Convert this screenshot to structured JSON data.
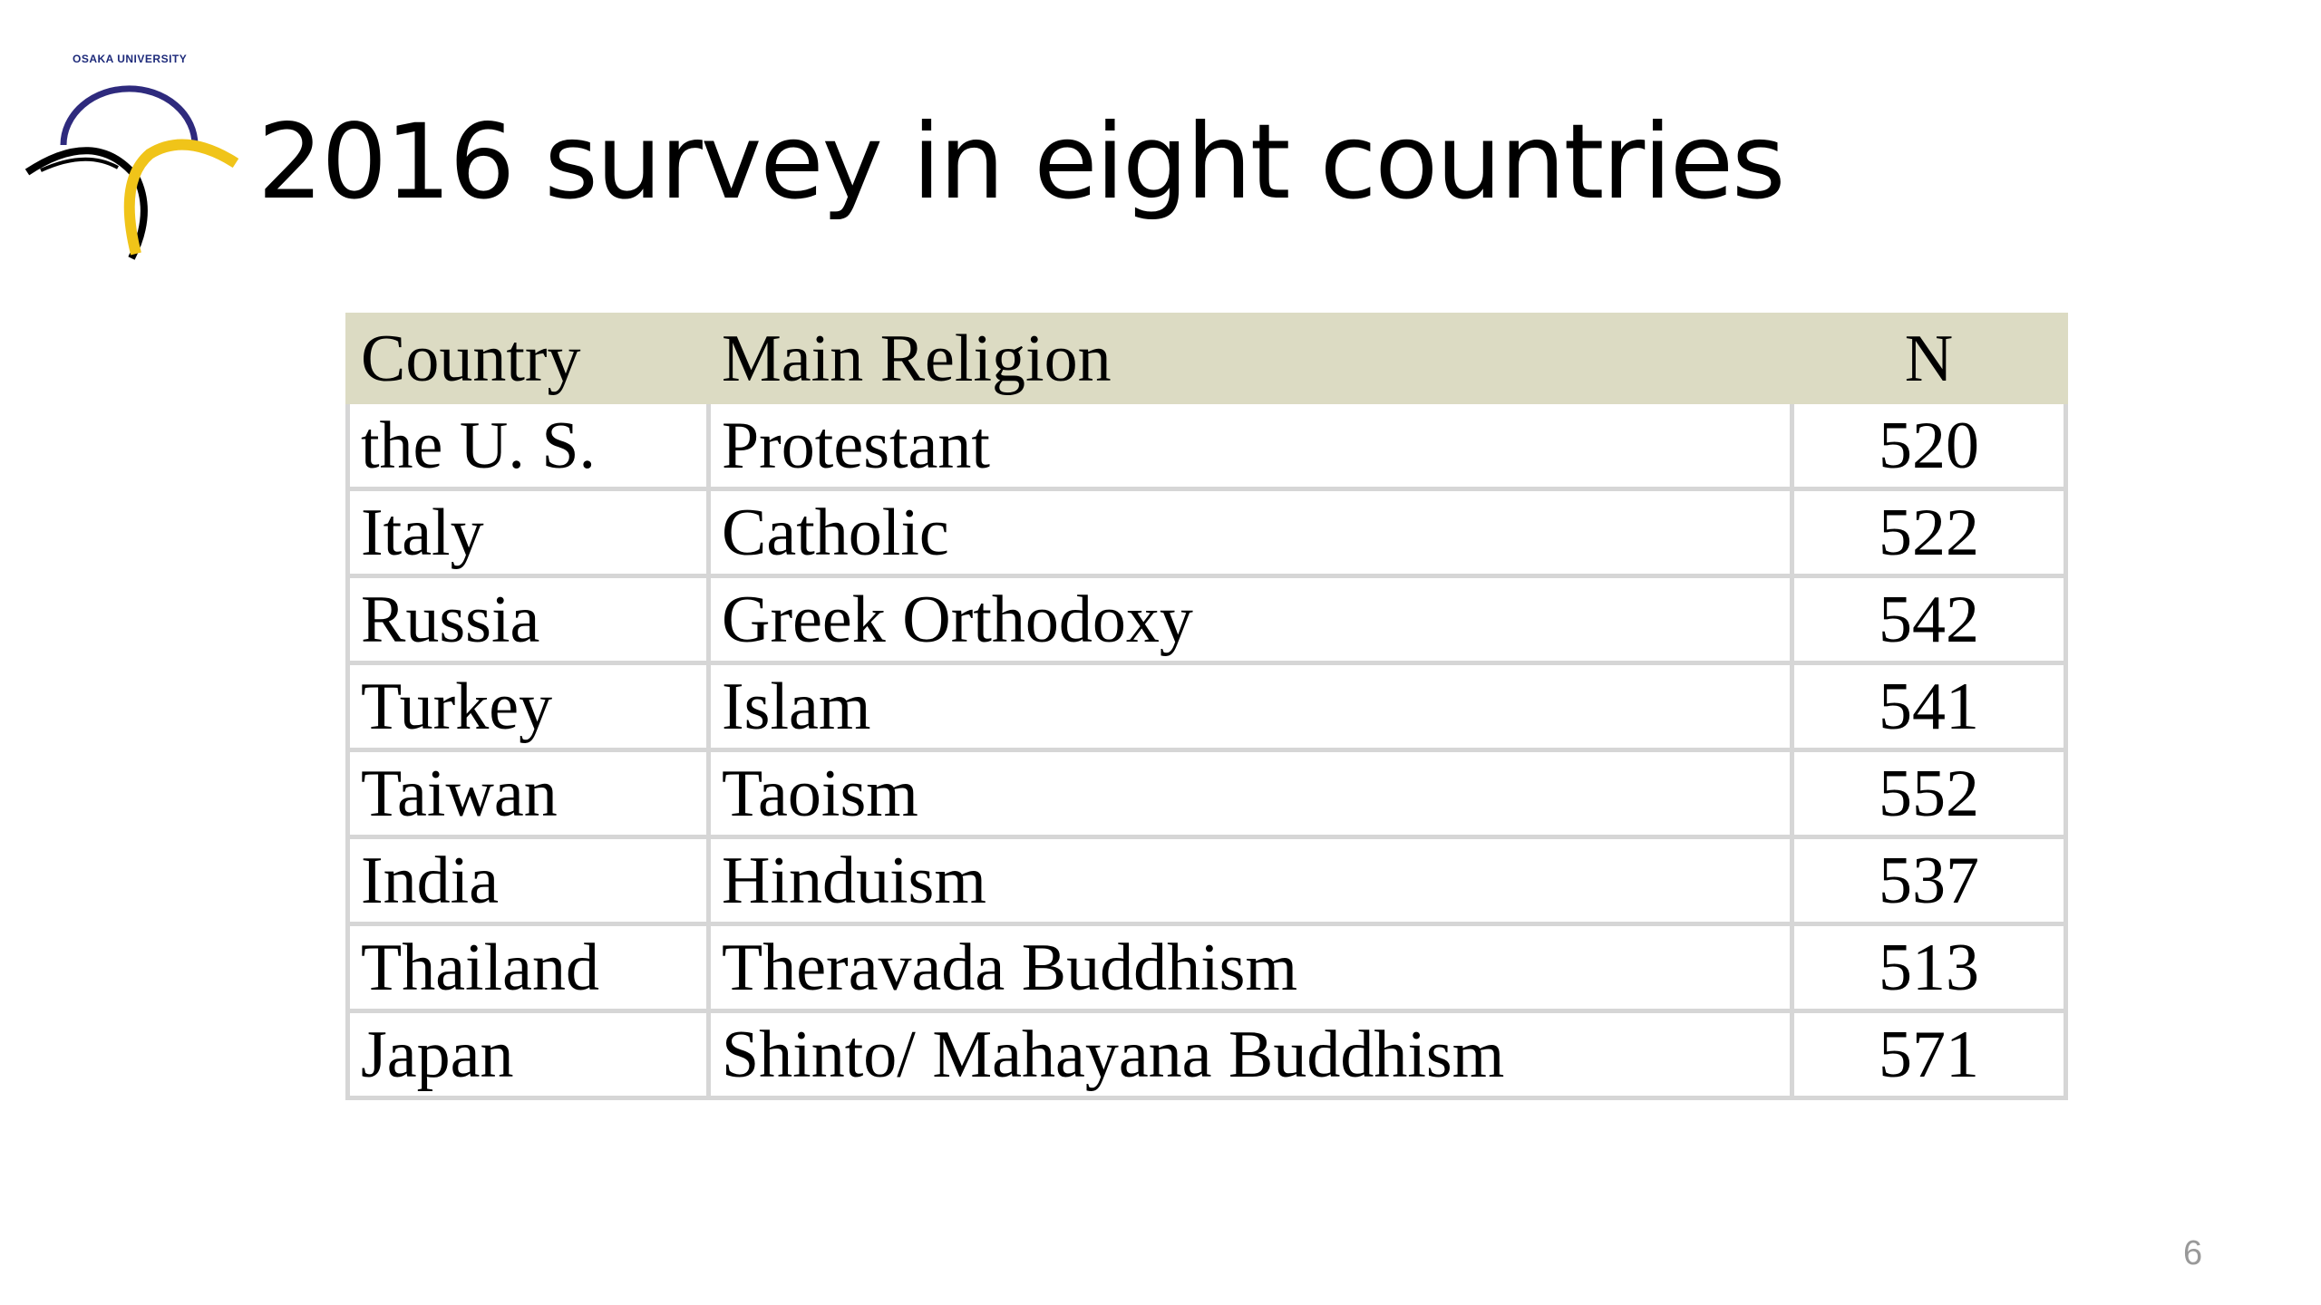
{
  "logo": {
    "text": "OSAKA UNIVERSITY"
  },
  "title": "2016 survey in eight countries",
  "table": {
    "header": [
      "Country",
      "Main Religion",
      "N"
    ],
    "rows": [
      [
        "the U. S.",
        "Protestant",
        520
      ],
      [
        "Italy",
        "Catholic",
        522
      ],
      [
        "Russia",
        "Greek Orthodoxy",
        542
      ],
      [
        "Turkey",
        "Islam",
        541
      ],
      [
        "Taiwan",
        "Taoism",
        552
      ],
      [
        "India",
        "Hinduism",
        537
      ],
      [
        "Thailand",
        "Theravada Buddhism",
        513
      ],
      [
        "Japan",
        "Shinto/ Mahayana Buddhism",
        571
      ]
    ]
  },
  "page_number": "6"
}
